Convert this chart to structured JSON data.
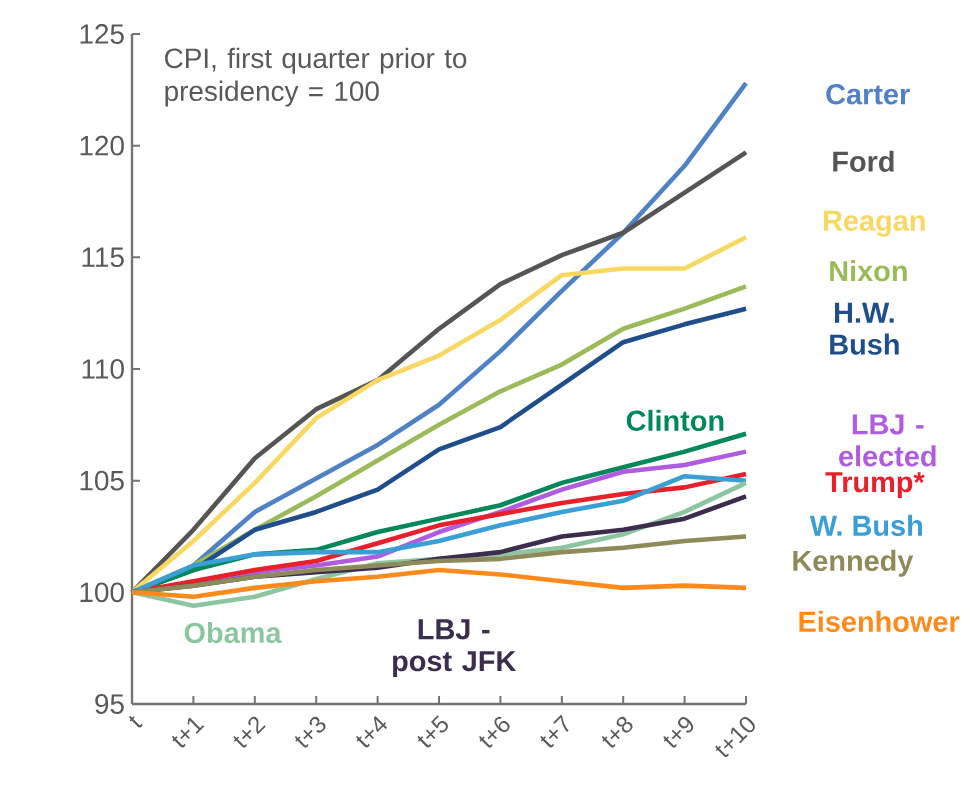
{
  "chart_data": {
    "type": "line",
    "categories": [
      "t",
      "t+1",
      "t+2",
      "t+3",
      "t+4",
      "t+5",
      "t+6",
      "t+7",
      "t+8",
      "t+9",
      "t+10"
    ],
    "ylim": [
      95,
      125
    ],
    "yticks": [
      95,
      100,
      105,
      110,
      115,
      120,
      125
    ],
    "annotations": [
      "CPI, first quarter prior to presidency = 100"
    ],
    "marker": "none",
    "legend": false,
    "series": [
      {
        "name": "Carter",
        "color": "#4f81c7",
        "values": [
          100,
          101.2,
          103.6,
          105.1,
          106.6,
          108.4,
          110.8,
          113.5,
          116.1,
          119.1,
          122.8
        ]
      },
      {
        "name": "Ford",
        "color": "#555555",
        "values": [
          100,
          102.8,
          106.0,
          108.2,
          109.5,
          111.8,
          113.8,
          115.1,
          116.1,
          117.9,
          119.7
        ]
      },
      {
        "name": "Reagan",
        "color": "#f8d860",
        "values": [
          100,
          102.3,
          104.9,
          107.8,
          109.5,
          110.6,
          112.2,
          114.2,
          114.5,
          114.5,
          115.9
        ]
      },
      {
        "name": "Nixon",
        "color": "#9bbb59",
        "values": [
          100,
          101.2,
          102.8,
          104.3,
          105.9,
          107.5,
          109.0,
          110.2,
          111.8,
          112.7,
          113.7
        ]
      },
      {
        "name": "H.W. Bush",
        "color": "#1f4e8c",
        "values": [
          100,
          101.0,
          102.8,
          103.6,
          104.6,
          106.4,
          107.4,
          109.3,
          111.2,
          112.0,
          112.7
        ]
      },
      {
        "name": "Clinton",
        "color": "#00875a",
        "values": [
          100,
          101.0,
          101.7,
          101.9,
          102.7,
          103.3,
          103.9,
          104.9,
          105.6,
          106.3,
          107.1
        ]
      },
      {
        "name": "LBJ - elected",
        "color": "#b05ce0",
        "values": [
          100,
          100.4,
          100.9,
          101.2,
          101.6,
          102.7,
          103.6,
          104.6,
          105.4,
          105.7,
          106.3
        ]
      },
      {
        "name": "Trump*",
        "color": "#e8202a",
        "values": [
          100,
          100.5,
          101.0,
          101.4,
          102.2,
          103.0,
          103.5,
          104.0,
          104.4,
          104.7,
          105.3
        ]
      },
      {
        "name": "W. Bush",
        "color": "#3a9fd6",
        "values": [
          100,
          101.2,
          101.7,
          101.8,
          101.8,
          102.3,
          103.0,
          103.6,
          104.1,
          105.2,
          105.0
        ]
      },
      {
        "name": "Obama",
        "color": "#8cc6a0",
        "values": [
          100,
          99.4,
          99.8,
          100.6,
          101.3,
          101.5,
          101.7,
          102.0,
          102.6,
          103.6,
          104.9
        ]
      },
      {
        "name": "LBJ - post JFK",
        "color": "#3c2c4e",
        "values": [
          100,
          100.3,
          100.7,
          100.9,
          101.1,
          101.5,
          101.8,
          102.5,
          102.8,
          103.3,
          104.3
        ]
      },
      {
        "name": "Kennedy",
        "color": "#8e8a5a",
        "values": [
          100,
          100.3,
          100.7,
          101.0,
          101.2,
          101.4,
          101.5,
          101.8,
          102.0,
          102.3,
          102.5
        ]
      },
      {
        "name": "Eisenhower",
        "color": "#ff8a1c",
        "values": [
          100,
          99.8,
          100.2,
          100.5,
          100.7,
          101.0,
          100.8,
          100.5,
          100.2,
          100.3,
          100.2
        ]
      }
    ]
  }
}
